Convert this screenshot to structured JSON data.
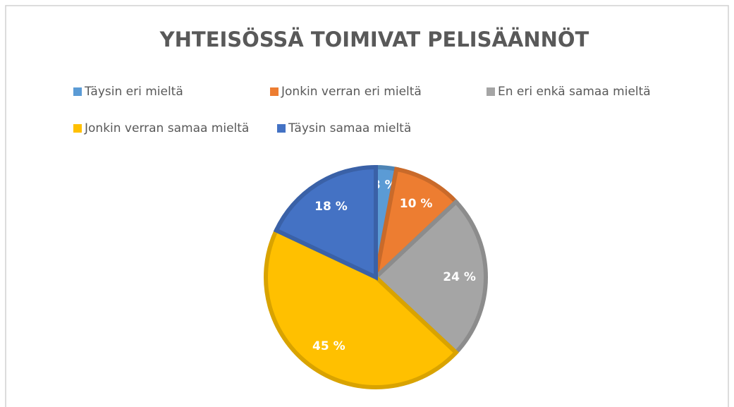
{
  "chart_data": {
    "type": "pie",
    "title": "YHTEISÖSSÄ TOIMIVAT PELISÄÄNNÖT",
    "categories": [
      "Täysin eri mieltä",
      "Jonkin verran eri mieltä",
      "En eri enkä samaa mieltä",
      "Jonkin verran samaa mieltä",
      "Täysin samaa mieltä"
    ],
    "values": [
      3,
      10,
      24,
      45,
      18
    ],
    "value_labels": [
      "3 %",
      "10 %",
      "24 %",
      "45 %",
      "18 %"
    ],
    "colors": [
      "#5b9bd5",
      "#ed7d31",
      "#a5a5a5",
      "#ffc000",
      "#4472c4"
    ],
    "legend": "top"
  }
}
